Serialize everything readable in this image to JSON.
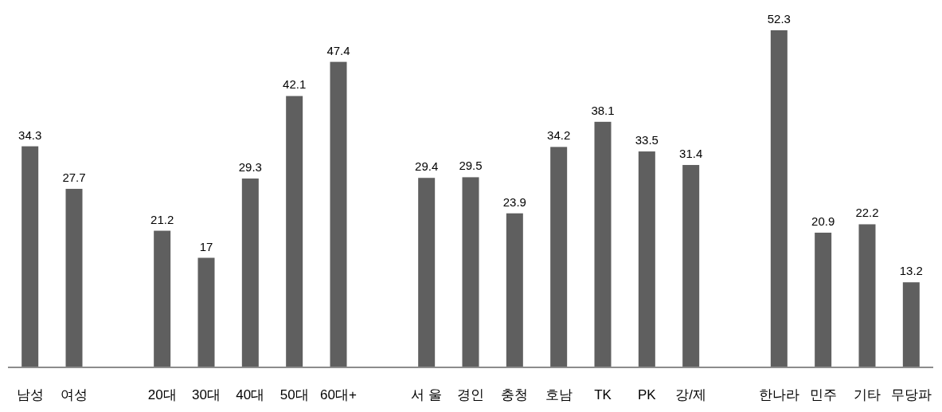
{
  "chart_data": {
    "type": "bar",
    "categories": [
      "남성",
      "여성",
      null,
      "20대",
      "30대",
      "40대",
      "50대",
      "60대+",
      null,
      "서 울",
      "경인",
      "충청",
      "호남",
      "TK",
      "PK",
      "강/제",
      null,
      "한나라",
      "민주",
      "기타",
      "무당파"
    ],
    "values": [
      34.3,
      27.7,
      null,
      21.2,
      17,
      29.3,
      42.1,
      47.4,
      null,
      29.4,
      29.5,
      23.9,
      34.2,
      38.1,
      33.5,
      31.4,
      null,
      52.3,
      20.9,
      22.2,
      13.2
    ],
    "color": "#5f5f5f",
    "data_labels": true,
    "grid": false,
    "legend": false
  }
}
